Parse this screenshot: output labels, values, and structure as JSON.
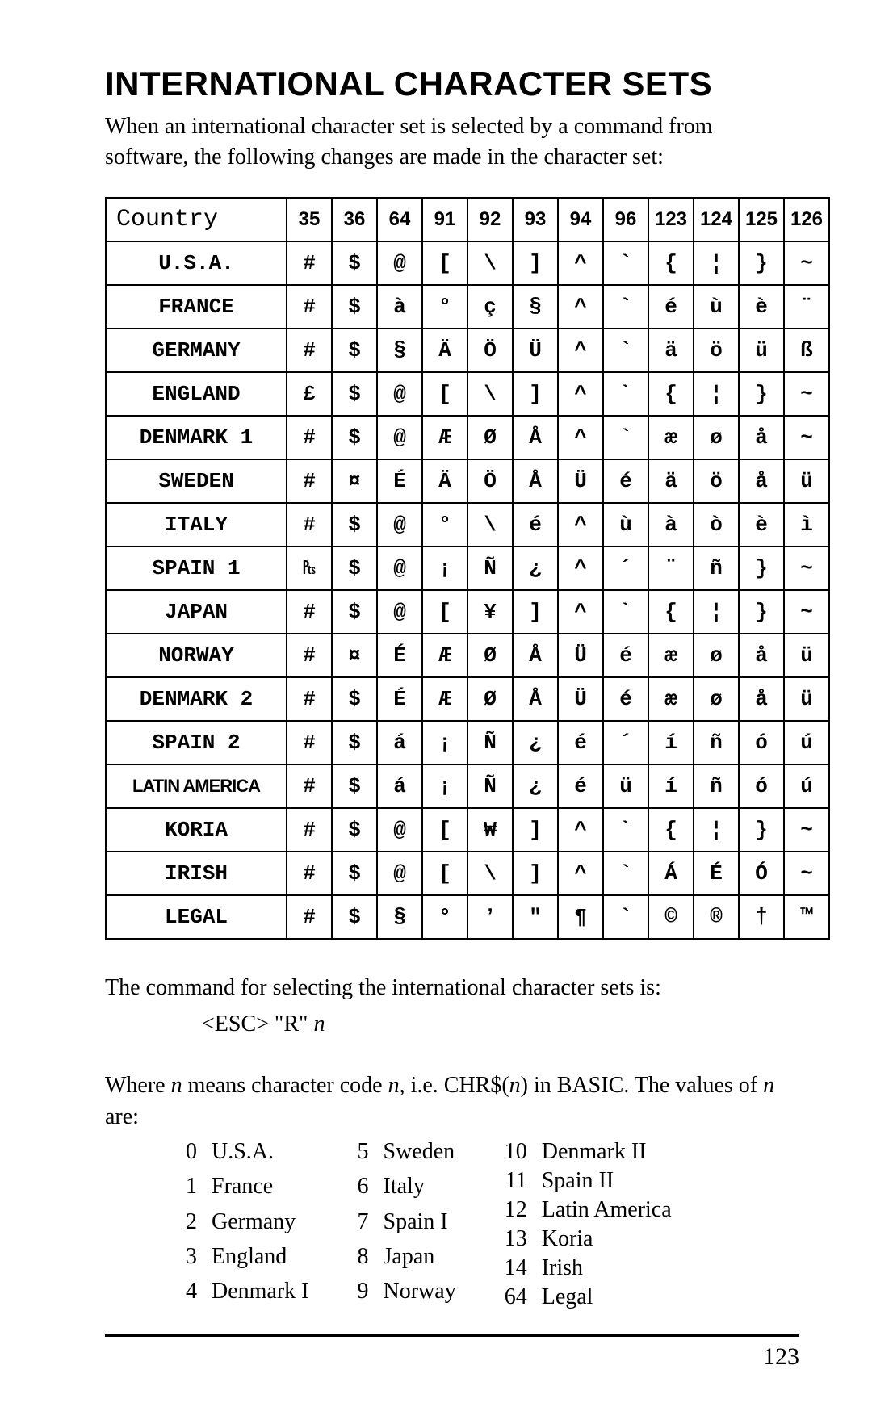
{
  "title": "INTERNATIONAL CHARACTER SETS",
  "intro": "When an international character set is selected by a command from software, the following changes are made in the character set:",
  "table": {
    "header_first": "Country",
    "code_columns": [
      "35",
      "36",
      "64",
      "91",
      "92",
      "93",
      "94",
      "96",
      "123",
      "124",
      "125",
      "126"
    ],
    "rows": [
      {
        "country": "U.S.A.",
        "chars": [
          "#",
          "$",
          "@",
          "[",
          "\\",
          "]",
          "^",
          "`",
          "{",
          "¦",
          "}",
          "~"
        ]
      },
      {
        "country": "FRANCE",
        "chars": [
          "#",
          "$",
          "à",
          "°",
          "ç",
          "§",
          "^",
          "`",
          "é",
          "ù",
          "è",
          "¨"
        ]
      },
      {
        "country": "GERMANY",
        "chars": [
          "#",
          "$",
          "§",
          "Ä",
          "Ö",
          "Ü",
          "^",
          "`",
          "ä",
          "ö",
          "ü",
          "ß"
        ]
      },
      {
        "country": "ENGLAND",
        "chars": [
          "£",
          "$",
          "@",
          "[",
          "\\",
          "]",
          "^",
          "`",
          "{",
          "¦",
          "}",
          "~"
        ]
      },
      {
        "country": "DENMARK 1",
        "chars": [
          "#",
          "$",
          "@",
          "Æ",
          "Ø",
          "Å",
          "^",
          "`",
          "æ",
          "ø",
          "å",
          "~"
        ]
      },
      {
        "country": "SWEDEN",
        "chars": [
          "#",
          "¤",
          "É",
          "Ä",
          "Ö",
          "Å",
          "Ü",
          "é",
          "ä",
          "ö",
          "å",
          "ü"
        ]
      },
      {
        "country": "ITALY",
        "chars": [
          "#",
          "$",
          "@",
          "°",
          "\\",
          "é",
          "^",
          "ù",
          "à",
          "ò",
          "è",
          "ì"
        ]
      },
      {
        "country": "SPAIN 1",
        "chars": [
          "₧",
          "$",
          "@",
          "¡",
          "Ñ",
          "¿",
          "^",
          "´",
          "¨",
          "ñ",
          "}",
          "~"
        ]
      },
      {
        "country": "JAPAN",
        "chars": [
          "#",
          "$",
          "@",
          "[",
          "¥",
          "]",
          "^",
          "`",
          "{",
          "¦",
          "}",
          "~"
        ]
      },
      {
        "country": "NORWAY",
        "chars": [
          "#",
          "¤",
          "É",
          "Æ",
          "Ø",
          "Å",
          "Ü",
          "é",
          "æ",
          "ø",
          "å",
          "ü"
        ]
      },
      {
        "country": "DENMARK 2",
        "chars": [
          "#",
          "$",
          "É",
          "Æ",
          "Ø",
          "Å",
          "Ü",
          "é",
          "æ",
          "ø",
          "å",
          "ü"
        ]
      },
      {
        "country": "SPAIN 2",
        "chars": [
          "#",
          "$",
          "á",
          "¡",
          "Ñ",
          "¿",
          "é",
          "´",
          "í",
          "ñ",
          "ó",
          "ú"
        ]
      },
      {
        "country": "LATIN AMERICA",
        "chars": [
          "#",
          "$",
          "á",
          "¡",
          "Ñ",
          "¿",
          "é",
          "ü",
          "í",
          "ñ",
          "ó",
          "ú"
        ]
      },
      {
        "country": "KORIA",
        "chars": [
          "#",
          "$",
          "@",
          "[",
          "₩",
          "]",
          "^",
          "`",
          "{",
          "¦",
          "}",
          "~"
        ]
      },
      {
        "country": "IRISH",
        "chars": [
          "#",
          "$",
          "@",
          "[",
          "\\",
          "]",
          "^",
          "`",
          "Á",
          "É",
          "Ó",
          "~"
        ]
      },
      {
        "country": "LEGAL",
        "chars": [
          "#",
          "$",
          "§",
          "°",
          "ʼ",
          "ʺ",
          "¶",
          "`",
          "©",
          "®",
          "†",
          "™"
        ]
      }
    ]
  },
  "after_text": "The command for selecting the international character sets is:",
  "command_prefix": "<ESC> \"R\" ",
  "command_var": "n",
  "where_text_1": "Where ",
  "where_text_2": " means character code ",
  "where_text_3": ", i.e. CHR$(",
  "where_text_4": ") in BASIC. The values of ",
  "where_text_5": " are:",
  "codes": [
    [
      [
        "0",
        "U.S.A."
      ],
      [
        "1",
        "France"
      ],
      [
        "2",
        "Germany"
      ],
      [
        "3",
        "England"
      ],
      [
        "4",
        "Denmark I"
      ]
    ],
    [
      [
        "5",
        "Sweden"
      ],
      [
        "6",
        "Italy"
      ],
      [
        "7",
        "Spain I"
      ],
      [
        "8",
        "Japan"
      ],
      [
        "9",
        "Norway"
      ]
    ],
    [
      [
        "10",
        "Denmark II"
      ],
      [
        "11",
        "Spain II"
      ],
      [
        "12",
        "Latin America"
      ],
      [
        "13",
        "Koria"
      ],
      [
        "14",
        "Irish"
      ],
      [
        "64",
        "Legal"
      ]
    ]
  ],
  "page_number": "123"
}
